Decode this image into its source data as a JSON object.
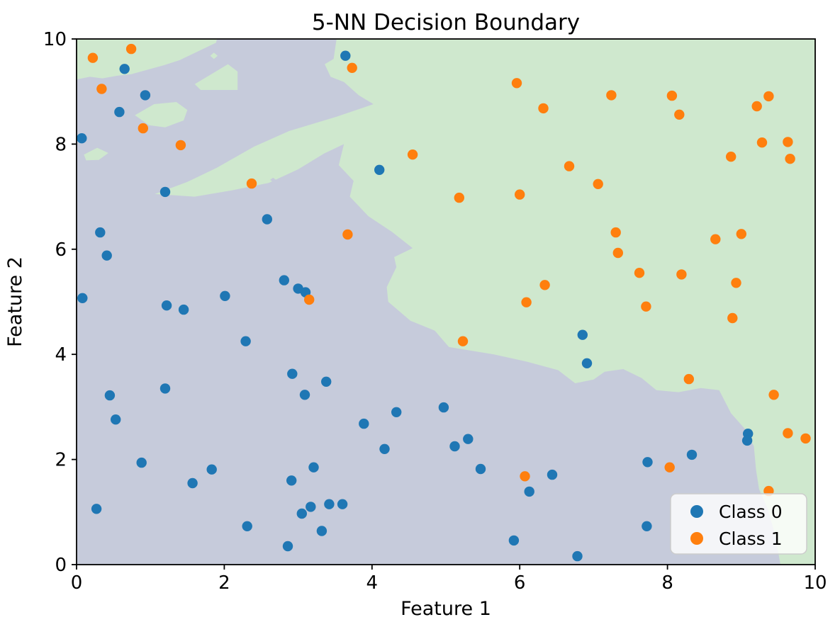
{
  "figure": {
    "background": "#ffffff"
  },
  "chart_data": {
    "type": "scatter",
    "title": "5-NN Decision Boundary",
    "xlabel": "Feature 1",
    "ylabel": "Feature 2",
    "xlim": [
      0,
      10
    ],
    "ylim": [
      0,
      10
    ],
    "xticks": [
      "0",
      "2",
      "4",
      "6",
      "8",
      "10"
    ],
    "yticks": [
      "0",
      "2",
      "4",
      "6",
      "8",
      "10"
    ],
    "grid": false,
    "legend": {
      "position": "lower right",
      "entries": [
        {
          "label": "Class 0",
          "color": "#1f77b4"
        },
        {
          "label": "Class 1",
          "color": "#ff7f0e"
        }
      ]
    },
    "series": [
      {
        "name": "Class 0",
        "color": "#1f77b4",
        "marker": "circle",
        "points": [
          [
            0.07,
            8.11
          ],
          [
            0.65,
            9.43
          ],
          [
            0.93,
            8.93
          ],
          [
            0.58,
            8.61
          ],
          [
            1.2,
            7.09
          ],
          [
            2.58,
            6.57
          ],
          [
            0.32,
            6.32
          ],
          [
            0.41,
            5.88
          ],
          [
            0.08,
            5.07
          ],
          [
            2.81,
            5.41
          ],
          [
            3.0,
            5.25
          ],
          [
            3.1,
            5.18
          ],
          [
            2.01,
            5.11
          ],
          [
            1.22,
            4.93
          ],
          [
            1.45,
            4.85
          ],
          [
            2.29,
            4.25
          ],
          [
            2.92,
            3.63
          ],
          [
            3.38,
            3.48
          ],
          [
            0.45,
            3.22
          ],
          [
            1.2,
            3.35
          ],
          [
            3.09,
            3.23
          ],
          [
            0.53,
            2.76
          ],
          [
            0.88,
            1.94
          ],
          [
            1.83,
            1.81
          ],
          [
            1.57,
            1.55
          ],
          [
            0.27,
            1.06
          ],
          [
            2.31,
            0.73
          ],
          [
            2.86,
            0.35
          ],
          [
            2.91,
            1.6
          ],
          [
            3.21,
            1.85
          ],
          [
            3.17,
            1.1
          ],
          [
            3.05,
            0.97
          ],
          [
            3.32,
            0.64
          ],
          [
            3.42,
            1.15
          ],
          [
            3.6,
            1.15
          ],
          [
            3.64,
            9.68
          ],
          [
            4.1,
            7.51
          ],
          [
            4.97,
            2.99
          ],
          [
            4.33,
            2.9
          ],
          [
            3.89,
            2.68
          ],
          [
            4.17,
            2.2
          ],
          [
            5.12,
            2.25
          ],
          [
            5.3,
            2.39
          ],
          [
            5.47,
            1.82
          ],
          [
            6.44,
            1.71
          ],
          [
            6.13,
            1.39
          ],
          [
            5.92,
            0.46
          ],
          [
            6.85,
            4.37
          ],
          [
            6.91,
            3.83
          ],
          [
            9.09,
            2.49
          ],
          [
            9.08,
            2.36
          ],
          [
            8.33,
            2.09
          ],
          [
            7.73,
            1.95
          ],
          [
            7.72,
            0.73
          ],
          [
            6.78,
            0.16
          ]
        ]
      },
      {
        "name": "Class 1",
        "color": "#ff7f0e",
        "marker": "circle",
        "points": [
          [
            0.74,
            9.81
          ],
          [
            0.22,
            9.64
          ],
          [
            0.34,
            9.05
          ],
          [
            0.9,
            8.3
          ],
          [
            1.41,
            7.98
          ],
          [
            2.37,
            7.25
          ],
          [
            3.73,
            9.45
          ],
          [
            3.67,
            6.28
          ],
          [
            3.15,
            5.04
          ],
          [
            4.55,
            7.8
          ],
          [
            5.18,
            6.98
          ],
          [
            6.0,
            7.04
          ],
          [
            5.96,
            9.16
          ],
          [
            6.32,
            8.68
          ],
          [
            6.67,
            7.58
          ],
          [
            7.06,
            7.24
          ],
          [
            7.24,
            8.93
          ],
          [
            8.06,
            8.92
          ],
          [
            8.16,
            8.56
          ],
          [
            9.21,
            8.72
          ],
          [
            9.37,
            8.91
          ],
          [
            9.28,
            8.03
          ],
          [
            9.63,
            8.04
          ],
          [
            9.66,
            7.72
          ],
          [
            8.86,
            7.76
          ],
          [
            7.3,
            6.32
          ],
          [
            7.33,
            5.93
          ],
          [
            8.65,
            6.19
          ],
          [
            9.0,
            6.29
          ],
          [
            7.62,
            5.55
          ],
          [
            8.19,
            5.52
          ],
          [
            8.93,
            5.36
          ],
          [
            7.71,
            4.91
          ],
          [
            8.88,
            4.69
          ],
          [
            8.29,
            3.53
          ],
          [
            9.44,
            3.23
          ],
          [
            6.34,
            5.32
          ],
          [
            6.09,
            4.99
          ],
          [
            5.23,
            4.25
          ],
          [
            6.07,
            1.68
          ],
          [
            8.03,
            1.85
          ],
          [
            9.63,
            2.5
          ],
          [
            9.87,
            2.4
          ],
          [
            9.37,
            1.4
          ]
        ]
      }
    ],
    "decision_regions": {
      "class0_color": "#c6cbdb",
      "class1_color": "#cfe8ce",
      "class1_polygons": [
        [
          [
            3.52,
            10
          ],
          [
            3.48,
            9.62
          ],
          [
            3.36,
            9.52
          ],
          [
            3.44,
            9.28
          ],
          [
            3.62,
            9.18
          ],
          [
            3.82,
            8.93
          ],
          [
            4.02,
            8.76
          ],
          [
            3.52,
            8.52
          ],
          [
            2.88,
            8.25
          ],
          [
            2.4,
            7.95
          ],
          [
            1.9,
            7.55
          ],
          [
            1.5,
            7.28
          ],
          [
            1.06,
            7.05
          ],
          [
            1.6,
            7.0
          ],
          [
            2.1,
            7.12
          ],
          [
            2.6,
            7.26
          ],
          [
            3.0,
            7.52
          ],
          [
            3.35,
            7.82
          ],
          [
            3.62,
            8.0
          ],
          [
            3.55,
            7.6
          ],
          [
            3.75,
            7.3
          ],
          [
            3.7,
            7.0
          ],
          [
            3.95,
            6.63
          ],
          [
            4.27,
            6.33
          ],
          [
            4.55,
            6.02
          ],
          [
            4.3,
            5.85
          ],
          [
            4.33,
            5.66
          ],
          [
            4.2,
            5.28
          ],
          [
            4.22,
            5.0
          ],
          [
            4.52,
            4.64
          ],
          [
            4.85,
            4.45
          ],
          [
            5.04,
            4.14
          ],
          [
            5.65,
            4.0
          ],
          [
            6.1,
            3.86
          ],
          [
            6.52,
            3.7
          ],
          [
            6.75,
            3.45
          ],
          [
            7.0,
            3.52
          ],
          [
            7.15,
            3.67
          ],
          [
            7.4,
            3.72
          ],
          [
            7.65,
            3.55
          ],
          [
            7.85,
            3.32
          ],
          [
            8.15,
            3.28
          ],
          [
            8.45,
            3.36
          ],
          [
            8.7,
            3.32
          ],
          [
            8.86,
            2.88
          ],
          [
            9.05,
            2.58
          ],
          [
            9.17,
            2.25
          ],
          [
            9.2,
            1.8
          ],
          [
            9.24,
            1.44
          ],
          [
            9.36,
            1.05
          ],
          [
            9.46,
            0.55
          ],
          [
            9.53,
            0.0
          ],
          [
            10,
            0
          ],
          [
            10,
            10
          ]
        ],
        [
          [
            0,
            10
          ],
          [
            1.9,
            10
          ],
          [
            1.89,
            9.93
          ],
          [
            1.4,
            9.6
          ],
          [
            1.18,
            9.5
          ],
          [
            0.74,
            9.33
          ],
          [
            0.55,
            9.3
          ],
          [
            0.35,
            9.25
          ],
          [
            0.18,
            9.28
          ],
          [
            0,
            9.23
          ]
        ],
        [
          [
            1.6,
            9.14
          ],
          [
            2.05,
            9.52
          ],
          [
            2.18,
            9.38
          ],
          [
            2.18,
            9.03
          ],
          [
            1.68,
            9.03
          ]
        ],
        [
          [
            0.79,
            8.55
          ],
          [
            1.05,
            8.76
          ],
          [
            1.35,
            8.8
          ],
          [
            1.5,
            8.65
          ],
          [
            1.45,
            8.45
          ],
          [
            1.2,
            8.32
          ],
          [
            0.98,
            8.36
          ]
        ],
        [
          [
            0.1,
            7.8
          ],
          [
            0.28,
            7.93
          ],
          [
            0.43,
            7.83
          ],
          [
            0.3,
            7.7
          ],
          [
            0.13,
            7.69
          ]
        ],
        [
          [
            1.81,
            9.68
          ],
          [
            1.86,
            9.74
          ],
          [
            1.91,
            9.68
          ],
          [
            1.86,
            9.62
          ]
        ]
      ],
      "class0_islands": [
        [
          [
            2.62,
            7.32
          ],
          [
            2.66,
            7.36
          ],
          [
            2.7,
            7.32
          ],
          [
            2.66,
            7.28
          ]
        ]
      ]
    }
  }
}
